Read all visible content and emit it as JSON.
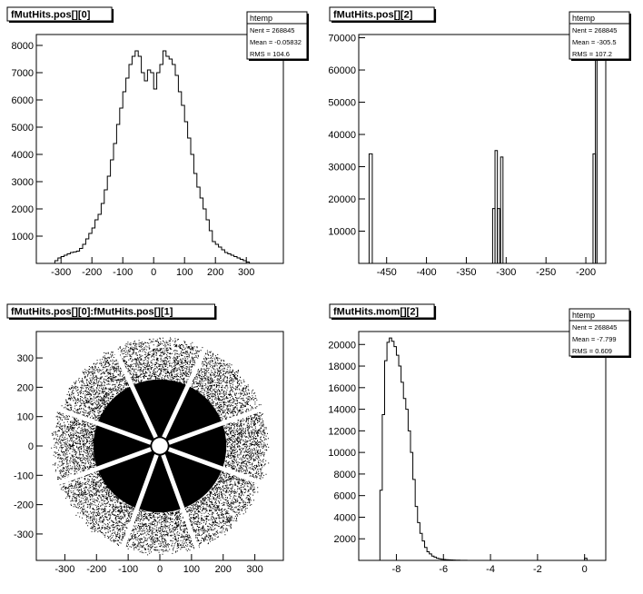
{
  "chart_data": [
    {
      "type": "histogram",
      "title": "fMutHits.pos[][0]",
      "stats": {
        "name": "htemp",
        "lines": [
          "Nent = 268845",
          "Mean  = -0.05832",
          "RMS   =  104.6"
        ]
      },
      "xlim": [
        -380,
        420
      ],
      "ylim": [
        0,
        8400
      ],
      "xticks": [
        -300,
        -200,
        -100,
        0,
        100,
        200,
        300
      ],
      "xtick_labels": [
        "-300",
        "-200",
        "-100",
        "0",
        "100",
        "200",
        "300"
      ],
      "yticks": [
        1000,
        2000,
        3000,
        4000,
        5000,
        6000,
        7000,
        8000
      ],
      "ytick_labels": [
        "1000",
        "2000",
        "3000",
        "4000",
        "5000",
        "6000",
        "7000",
        "8000"
      ],
      "bin_width": 10,
      "x": [
        -330,
        -320,
        -310,
        -300,
        -290,
        -280,
        -270,
        -260,
        -250,
        -240,
        -230,
        -220,
        -210,
        -200,
        -190,
        -180,
        -170,
        -160,
        -150,
        -140,
        -130,
        -120,
        -110,
        -100,
        -90,
        -80,
        -70,
        -60,
        -50,
        -40,
        -30,
        -20,
        -10,
        0,
        10,
        20,
        30,
        40,
        50,
        60,
        70,
        80,
        90,
        100,
        110,
        120,
        130,
        140,
        150,
        160,
        170,
        180,
        190,
        200,
        210,
        220,
        230,
        240,
        250,
        260,
        270,
        280,
        290,
        300,
        310,
        320
      ],
      "values": [
        0,
        100,
        200,
        250,
        300,
        350,
        400,
        420,
        450,
        550,
        700,
        900,
        1100,
        1300,
        1600,
        1800,
        2200,
        2700,
        3200,
        3800,
        4400,
        5100,
        5700,
        6300,
        6800,
        7300,
        7600,
        7800,
        7600,
        7000,
        6700,
        7100,
        7000,
        6400,
        7000,
        7300,
        7800,
        7600,
        7500,
        7300,
        6900,
        6300,
        5800,
        5200,
        4600,
        4000,
        3300,
        2800,
        2400,
        2000,
        1600,
        1200,
        800,
        700,
        600,
        500,
        400,
        350,
        300,
        250,
        200,
        150,
        100,
        50,
        0,
        0
      ],
      "style": "step"
    },
    {
      "type": "histogram",
      "title": "fMutHits.pos[][2]",
      "stats": {
        "name": "htemp",
        "lines": [
          "Nent = 268845",
          "Mean  = -305.5",
          "RMS   =  107.2"
        ]
      },
      "xlim": [
        -485,
        -175
      ],
      "ylim": [
        0,
        71000
      ],
      "xticks": [
        -450,
        -400,
        -350,
        -300,
        -250,
        -200
      ],
      "xtick_labels": [
        "-450",
        "-400",
        "-350",
        "-300",
        "-250",
        "-200"
      ],
      "yticks": [
        10000,
        20000,
        30000,
        40000,
        50000,
        60000,
        70000
      ],
      "ytick_labels": [
        "10000",
        "20000",
        "30000",
        "40000",
        "50000",
        "60000",
        "70000"
      ],
      "y_label_clip": true,
      "bins": [
        {
          "x0": -472,
          "x1": -468,
          "value": 34000
        },
        {
          "x0": -317,
          "x1": -314,
          "value": 17000
        },
        {
          "x0": -314,
          "x1": -311,
          "value": 35000
        },
        {
          "x0": -311,
          "x1": -308,
          "value": 17000
        },
        {
          "x0": -307,
          "x1": -304,
          "value": 33000
        },
        {
          "x0": -191,
          "x1": -188,
          "value": 34000
        },
        {
          "x0": -188,
          "x1": -186,
          "value": 71000
        }
      ],
      "style": "step"
    },
    {
      "type": "scatter",
      "title": "fMutHits.pos[][0]:fMutHits.pos[][1]",
      "xlim": [
        -390,
        390
      ],
      "ylim": [
        -390,
        390
      ],
      "xticks": [
        -300,
        -200,
        -100,
        0,
        100,
        200,
        300
      ],
      "xtick_labels": [
        "-300",
        "-200",
        "-100",
        "0",
        "100",
        "200",
        "300"
      ],
      "yticks": [
        -300,
        -200,
        -100,
        0,
        100,
        200,
        300
      ],
      "ytick_labels": [
        "-300",
        "-200",
        "-100",
        "0",
        "100",
        "200",
        "300"
      ],
      "description_shape": "disk",
      "inner_radius": 25,
      "dense_radius": 210,
      "outer_radius": 340,
      "gap_angles_deg": [
        -20,
        20,
        65,
        115,
        160,
        200,
        250,
        290
      ],
      "gap_half_width": 7
    },
    {
      "type": "histogram",
      "title": "fMutHits.mom[][2]",
      "stats": {
        "name": "htemp",
        "lines": [
          "Nent = 268845",
          "Mean  = -7.799",
          "RMS   =  0.609"
        ]
      },
      "xlim": [
        -9.6,
        0.9
      ],
      "ylim": [
        0,
        21200
      ],
      "xticks": [
        -8,
        -6,
        -4,
        -2,
        0
      ],
      "xtick_labels": [
        "-8",
        "-6",
        "-4",
        "-2",
        "0"
      ],
      "yticks": [
        2000,
        4000,
        6000,
        8000,
        10000,
        12000,
        14000,
        16000,
        18000,
        20000
      ],
      "ytick_labels": [
        "2000",
        "4000",
        "6000",
        "8000",
        "10000",
        "12000",
        "14000",
        "16000",
        "18000",
        "20000"
      ],
      "bin_width": 0.1,
      "x": [
        -8.8,
        -8.7,
        -8.6,
        -8.5,
        -8.4,
        -8.3,
        -8.2,
        -8.1,
        -8.0,
        -7.9,
        -7.8,
        -7.7,
        -7.6,
        -7.5,
        -7.4,
        -7.3,
        -7.2,
        -7.1,
        -7.0,
        -6.9,
        -6.8,
        -6.7,
        -6.6,
        -6.5,
        -6.4,
        -6.3,
        -6.2,
        -6.1,
        -6.0,
        -5.9,
        -5.8,
        -5.7,
        -5.6,
        -5.5,
        -5.4,
        -5.3,
        -5.2,
        -5.1,
        -5.0,
        -4.9
      ],
      "values": [
        0,
        6500,
        13500,
        18500,
        20200,
        20600,
        20300,
        19800,
        19000,
        18000,
        16500,
        15000,
        14000,
        12000,
        10000,
        7500,
        5000,
        3500,
        2500,
        1800,
        1200,
        800,
        600,
        400,
        300,
        200,
        150,
        100,
        80,
        60,
        50,
        40,
        30,
        20,
        20,
        10,
        10,
        10,
        0,
        0
      ],
      "extra": [
        {
          "x0": 0.0,
          "x1": 0.1,
          "value": 200
        }
      ],
      "style": "step"
    }
  ]
}
